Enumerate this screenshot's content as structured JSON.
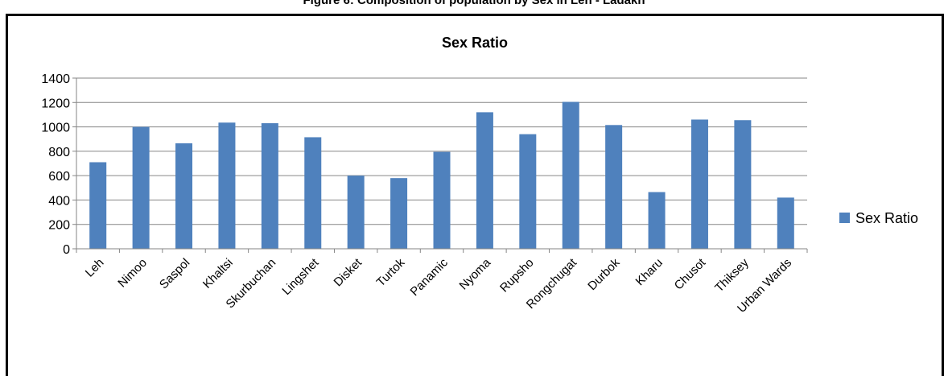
{
  "figure_caption": "Figure 6: Composition of population by Sex in Leh - Ladakh",
  "chart_data": {
    "type": "bar",
    "title": "Sex Ratio",
    "xlabel": "",
    "ylabel": "",
    "categories": [
      "Leh",
      "Nimoo",
      "Saspol",
      "Khaltsi",
      "Skurbuchan",
      "Lingshet",
      "Disket",
      "Turtok",
      "Panamic",
      "Nyoma",
      "Rupsho",
      "Rongchugat",
      "Durbok",
      "Kharu",
      "Chusot",
      "Thiksey",
      "Urban Wards"
    ],
    "series": [
      {
        "name": "Sex Ratio",
        "values": [
          710,
          1000,
          865,
          1035,
          1030,
          915,
          600,
          580,
          795,
          1120,
          940,
          1205,
          1015,
          465,
          1060,
          1055,
          420
        ]
      }
    ],
    "ylim": [
      0,
      1400
    ],
    "yticks": [
      "0",
      "200",
      "400",
      "600",
      "800",
      "1000",
      "1200",
      "1400"
    ],
    "grid": true,
    "legend_position": "right",
    "bar_color": "#4f81bd"
  }
}
